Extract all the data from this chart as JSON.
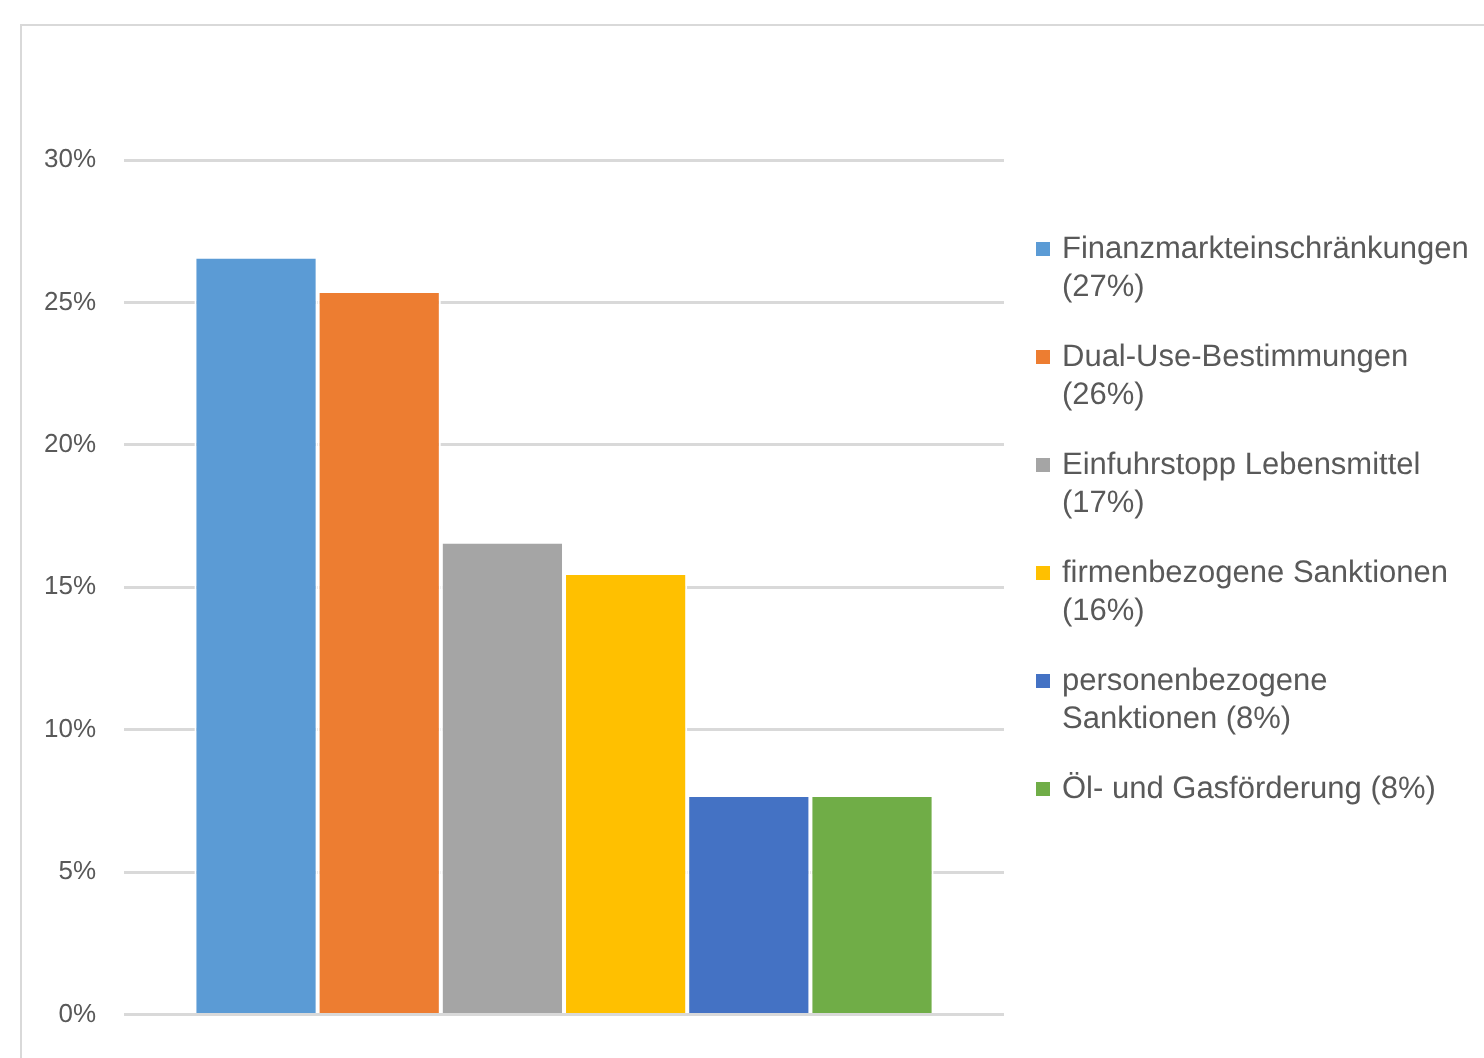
{
  "chart_data": {
    "type": "bar",
    "categories": [
      null
    ],
    "series": [
      {
        "name": "Finanzmarkteinschränkungen (27%)",
        "color": "#5b9bd5",
        "values": [
          26.6
        ]
      },
      {
        "name": "Dual-Use-Bestimmungen (26%)",
        "color": "#ed7d31",
        "values": [
          25.4
        ]
      },
      {
        "name": "Einfuhrstopp Lebensmittel (17%)",
        "color": "#a5a5a5",
        "values": [
          16.6
        ]
      },
      {
        "name": "firmenbezogene Sanktionen (16%)",
        "color": "#ffc000",
        "values": [
          15.5
        ]
      },
      {
        "name": "personenbezogene Sanktionen (8%)",
        "color": "#4472c4",
        "values": [
          7.7
        ]
      },
      {
        "name": "Öl- und Gasförderung (8%)",
        "color": "#70ad47",
        "values": [
          7.7
        ]
      }
    ],
    "ylim": [
      0,
      30
    ],
    "yticks": [
      {
        "value": 0,
        "label": "0%"
      },
      {
        "value": 5,
        "label": "5%"
      },
      {
        "value": 10,
        "label": "10%"
      },
      {
        "value": 15,
        "label": "15%"
      },
      {
        "value": 20,
        "label": "20%"
      },
      {
        "value": 25,
        "label": "25%"
      },
      {
        "value": 30,
        "label": "30%"
      }
    ],
    "grid": "y",
    "legend": "right"
  }
}
